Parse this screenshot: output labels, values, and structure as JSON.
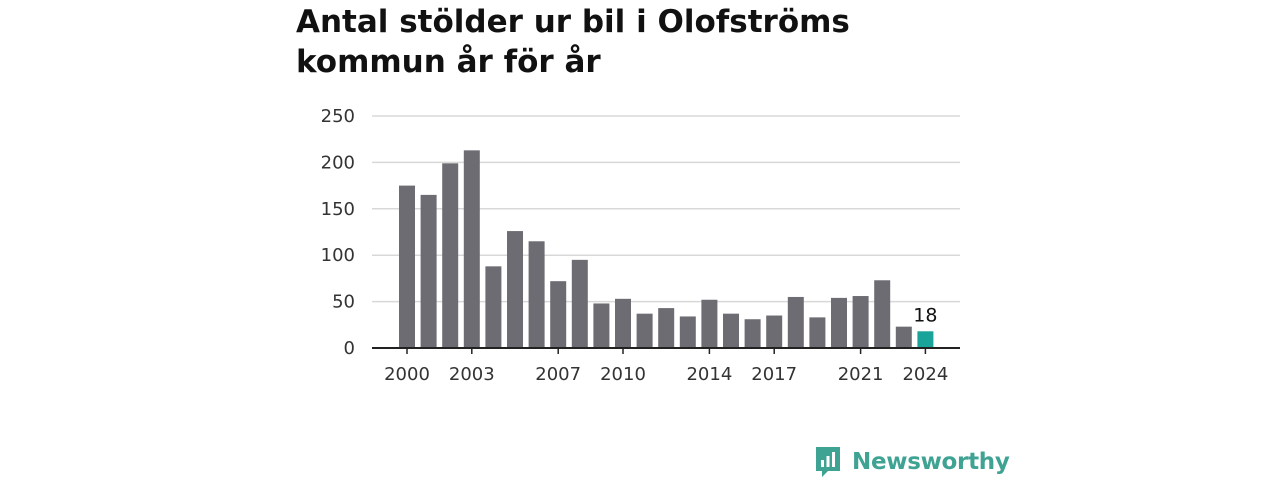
{
  "chart_data": {
    "type": "bar",
    "title": "Antal stölder ur bil i Olofströms kommun år för år",
    "xlabel": "",
    "ylabel": "",
    "categories": [
      "2000",
      "2001",
      "2002",
      "2003",
      "2004",
      "2005",
      "2006",
      "2007",
      "2008",
      "2009",
      "2010",
      "2011",
      "2012",
      "2013",
      "2014",
      "2015",
      "2016",
      "2017",
      "2018",
      "2019",
      "2020",
      "2021",
      "2022",
      "2023",
      "2024"
    ],
    "values": [
      175,
      165,
      199,
      213,
      88,
      126,
      115,
      72,
      95,
      48,
      53,
      37,
      43,
      34,
      52,
      37,
      31,
      35,
      55,
      33,
      54,
      56,
      73,
      23,
      18
    ],
    "x_tick_labels": [
      "2000",
      "2003",
      "2007",
      "2010",
      "2014",
      "2017",
      "2021",
      "2024"
    ],
    "y_ticks": [
      0,
      50,
      100,
      150,
      200,
      250
    ],
    "ylim": [
      0,
      250
    ],
    "grid": true,
    "highlight": {
      "category": "2024",
      "label": "18"
    },
    "colors": {
      "bar": "#6e6c73",
      "highlight": "#1aa398",
      "grid": "#d8d8d8",
      "axis": "#222222"
    }
  },
  "brand": {
    "name": "Newsworthy",
    "icon": "newsworthy-logo-icon",
    "color": "#3fa394"
  }
}
